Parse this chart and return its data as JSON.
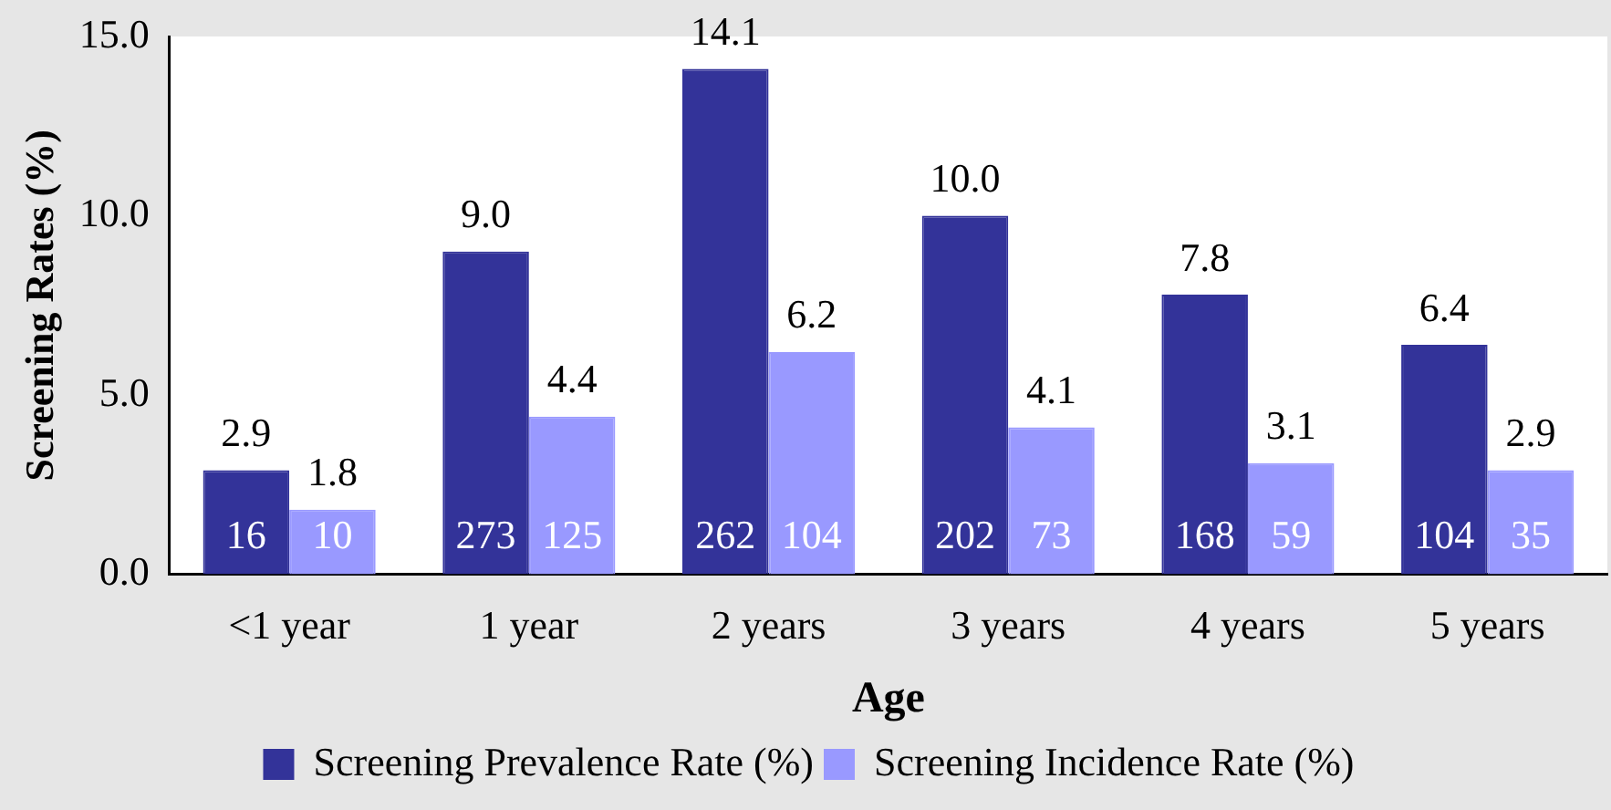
{
  "chart_data": {
    "type": "bar",
    "xlabel": "Age",
    "ylabel": "Screening Rates (%)",
    "categories": [
      "<1 year",
      "1 year",
      "2 years",
      "3 years",
      "4 years",
      "5 years"
    ],
    "series": [
      {
        "name": "Screening Prevalence Rate (%)",
        "color": "#333399",
        "values": [
          2.9,
          9.0,
          14.1,
          10.0,
          7.8,
          6.4
        ],
        "value_labels": [
          "2.9",
          "9.0",
          "14.1",
          "10.0",
          "7.8",
          "6.4"
        ]
      },
      {
        "name": "Screening Incidence Rate (%)",
        "color": "#9999ff",
        "values": [
          1.8,
          4.4,
          6.2,
          4.1,
          3.1,
          2.9
        ],
        "value_labels": [
          "1.8",
          "4.4",
          "6.2",
          "4.1",
          "3.1",
          "2.9"
        ]
      }
    ],
    "annotations": [
      "16",
      "10",
      "273",
      "125",
      "262",
      "104",
      "202",
      "73",
      "168",
      "59",
      "104",
      "35"
    ],
    "ylim": [
      0,
      15
    ],
    "yticks": [
      {
        "value": 0,
        "label": "0.0"
      },
      {
        "value": 5,
        "label": "5.0"
      },
      {
        "value": 10,
        "label": "10.0"
      },
      {
        "value": 15,
        "label": "15.0"
      }
    ],
    "grid": false,
    "legend": "bottom"
  }
}
